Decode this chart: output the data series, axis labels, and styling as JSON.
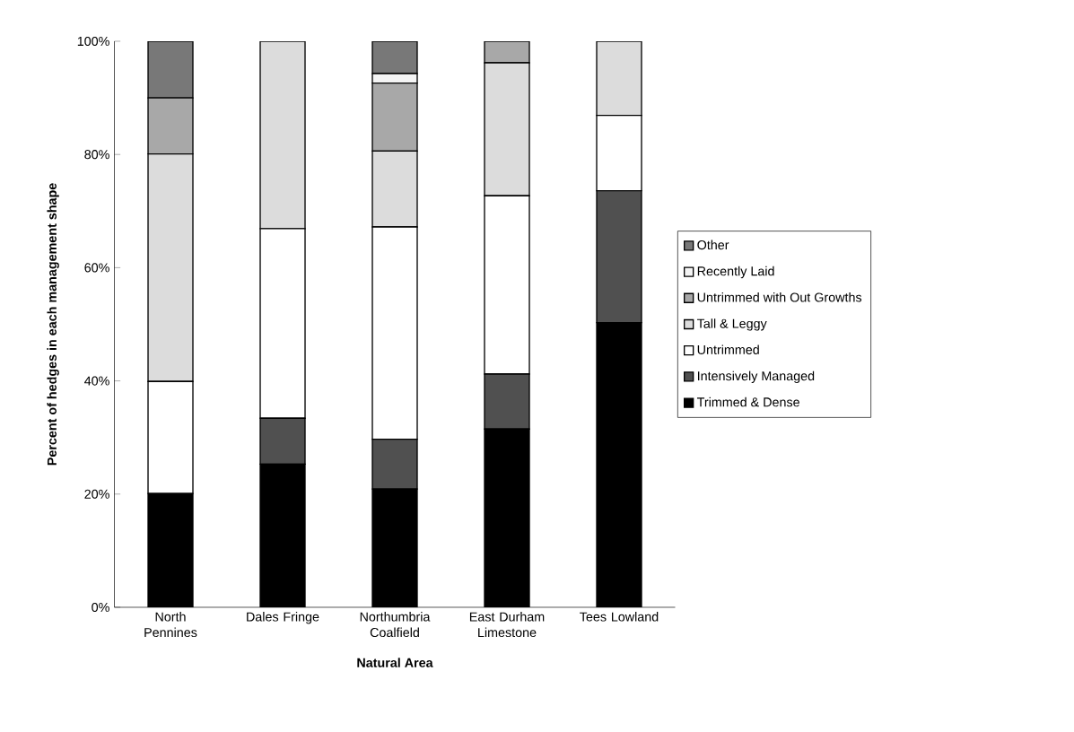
{
  "chart_data": {
    "type": "bar",
    "stacked": true,
    "xlabel": "Natural Area",
    "ylabel": "Percent of hedges in each management shape",
    "categories": [
      "North Pennines",
      "Dales Fringe",
      "Northumbria Coalfield",
      "East Durham Limestone",
      "Tees Lowland"
    ],
    "series": [
      {
        "name": "Trimmed & Dense",
        "color": "#000000",
        "values": [
          20.1,
          25.3,
          20.9,
          31.5,
          50.3
        ]
      },
      {
        "name": "Intensively Managed",
        "color": "#505050",
        "values": [
          0,
          8.1,
          8.8,
          9.7,
          23.3
        ]
      },
      {
        "name": "Untrimmed",
        "color": "#ffffff",
        "values": [
          19.8,
          33.5,
          37.5,
          31.5,
          13.3
        ]
      },
      {
        "name": "Tall & Leggy",
        "color": "#dcdcdc",
        "values": [
          40.2,
          33.1,
          13.4,
          23.5,
          13.1
        ]
      },
      {
        "name": "Untrimmed with Out Growths",
        "color": "#a8a8a8",
        "values": [
          9.9,
          0,
          12.0,
          3.8,
          0
        ]
      },
      {
        "name": "Recently Laid",
        "color": "#f4f4f4",
        "values": [
          0,
          0,
          1.7,
          0,
          0
        ]
      },
      {
        "name": "Other",
        "color": "#787878",
        "values": [
          10.0,
          0,
          5.7,
          0,
          0
        ]
      }
    ],
    "ylim": [
      0,
      100
    ],
    "yticks": [
      {
        "value": 0,
        "label": "0%"
      },
      {
        "value": 20,
        "label": "20%"
      },
      {
        "value": 40,
        "label": "40%"
      },
      {
        "value": 60,
        "label": "60%"
      },
      {
        "value": 80,
        "label": "80%"
      },
      {
        "value": 100,
        "label": "100%"
      }
    ],
    "legend": "right",
    "grid": false
  }
}
